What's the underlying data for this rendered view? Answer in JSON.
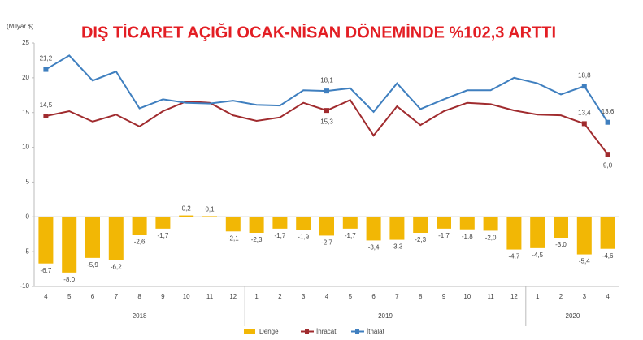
{
  "chart_data": {
    "type": "bar-line",
    "title": "DIŞ TİCARET AÇIĞI OCAK-NİSAN DÖNEMİNDE %102,3 ARTTI",
    "y_label": "(Milyar $)",
    "categories": [
      "4",
      "5",
      "6",
      "7",
      "8",
      "9",
      "10",
      "11",
      "12",
      "1",
      "2",
      "3",
      "4",
      "5",
      "6",
      "7",
      "8",
      "9",
      "10",
      "11",
      "12",
      "1",
      "2",
      "3",
      "4"
    ],
    "groups": [
      {
        "label": "2018",
        "size": 9
      },
      {
        "label": "2019",
        "size": 12
      },
      {
        "label": "2020",
        "size": 4
      }
    ],
    "ylim": [
      -10,
      25
    ],
    "yticks": [
      -10,
      -5,
      0,
      5,
      10,
      15,
      20,
      25
    ],
    "grid": false,
    "series": [
      {
        "name": "Denge",
        "type": "bar",
        "color": "#f2b705",
        "values": [
          -6.7,
          -8.0,
          -5.9,
          -6.2,
          -2.6,
          -1.7,
          0.2,
          0.1,
          -2.1,
          -2.3,
          -1.7,
          -1.9,
          -2.7,
          -1.7,
          -3.4,
          -3.3,
          -2.3,
          -1.7,
          -1.8,
          -2.0,
          -4.7,
          -4.5,
          -3.0,
          -5.4,
          -4.6
        ],
        "value_labels": [
          "-6,7",
          "-8,0",
          "-5,9",
          "-6,2",
          "-2,6",
          "-1,7",
          "0,2",
          "0,1",
          "-2,1",
          "-2,3",
          "-1,7",
          "-1,9",
          "-2,7",
          "-1,7",
          "-3,4",
          "-3,3",
          "-2,3",
          "-1,7",
          "-1,8",
          "-2,0",
          "-4,7",
          "-4,5",
          "-3,0",
          "-5,4",
          "-4,6"
        ]
      },
      {
        "name": "İhracat",
        "type": "line",
        "color": "#a02b2e",
        "values": [
          14.5,
          15.2,
          13.7,
          14.7,
          13.0,
          15.2,
          16.6,
          16.4,
          14.6,
          13.8,
          14.3,
          16.4,
          15.3,
          16.8,
          11.7,
          15.9,
          13.2,
          15.2,
          16.4,
          16.2,
          15.3,
          14.7,
          14.6,
          13.4,
          9.0
        ],
        "value_labels": [
          "14,5",
          null,
          null,
          null,
          null,
          null,
          null,
          null,
          null,
          null,
          null,
          null,
          "15,3",
          null,
          null,
          null,
          null,
          null,
          null,
          null,
          null,
          null,
          null,
          "13,4",
          "9,0"
        ]
      },
      {
        "name": "İthalat",
        "type": "line",
        "color": "#3f7fbf",
        "values": [
          21.2,
          23.2,
          19.6,
          20.9,
          15.6,
          16.9,
          16.4,
          16.3,
          16.7,
          16.1,
          16.0,
          18.2,
          18.1,
          18.5,
          15.1,
          19.2,
          15.5,
          16.9,
          18.2,
          18.2,
          20.0,
          19.2,
          17.6,
          18.8,
          13.6
        ],
        "value_labels": [
          "21,2",
          null,
          null,
          null,
          null,
          null,
          null,
          null,
          null,
          null,
          null,
          null,
          "18,1",
          null,
          null,
          null,
          null,
          null,
          null,
          null,
          null,
          null,
          null,
          "18,8",
          "13,6"
        ]
      }
    ]
  }
}
